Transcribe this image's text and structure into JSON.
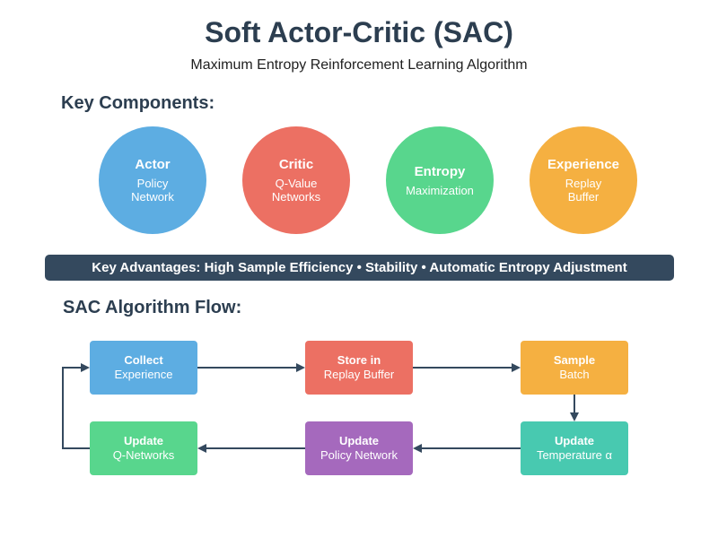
{
  "title": "Soft Actor-Critic (SAC)",
  "subtitle": "Maximum Entropy Reinforcement Learning Algorithm",
  "components_heading": "Key Components:",
  "components": [
    {
      "title": "Actor",
      "lines": [
        "Policy",
        "Network"
      ],
      "color": "#5dade2"
    },
    {
      "title": "Critic",
      "lines": [
        "Q-Value",
        "Networks"
      ],
      "color": "#ec7063"
    },
    {
      "title": "Entropy",
      "lines": [
        "Maximization"
      ],
      "color": "#58d68d"
    },
    {
      "title": "Experience",
      "lines": [
        "Replay",
        "Buffer"
      ],
      "color": "#f5b041"
    }
  ],
  "advantages_banner": "Key Advantages: High Sample Efficiency • Stability • Automatic Entropy Adjustment",
  "flow_heading": "SAC Algorithm Flow:",
  "flow_steps": [
    {
      "title": "Collect",
      "sub": "Experience",
      "color": "#5dade2"
    },
    {
      "title": "Store in",
      "sub": "Replay Buffer",
      "color": "#ec7063"
    },
    {
      "title": "Sample",
      "sub": "Batch",
      "color": "#f5b041"
    },
    {
      "title": "Update",
      "sub": "Temperature α",
      "color": "#48c9b0"
    },
    {
      "title": "Update",
      "sub": "Policy Network",
      "color": "#a569bd"
    },
    {
      "title": "Update",
      "sub": "Q-Networks",
      "color": "#58d68d"
    }
  ],
  "arrow_color": "#34495e"
}
